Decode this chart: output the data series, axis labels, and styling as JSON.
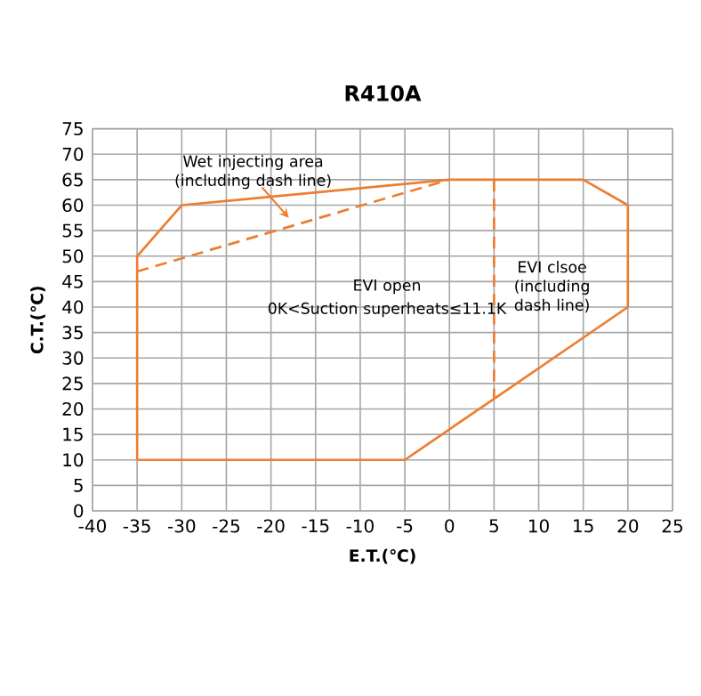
{
  "chart_data": {
    "type": "line",
    "title": "R410A",
    "xlabel": "E.T.(℃)",
    "ylabel": "C.T.(℃)",
    "xlim": [
      -40,
      25
    ],
    "xticks": [
      -40,
      -35,
      -30,
      -25,
      -20,
      -15,
      -10,
      -5,
      0,
      5,
      10,
      15,
      20,
      25
    ],
    "ylim": [
      0,
      75
    ],
    "yticks": [
      0,
      5,
      10,
      15,
      20,
      25,
      30,
      35,
      40,
      45,
      50,
      55,
      60,
      65,
      70,
      75
    ],
    "grid": true,
    "marker": "none",
    "series": [
      {
        "color": "#ed7d31",
        "line_style": "solid",
        "x": [
          -35,
          -35,
          -30,
          0,
          15,
          20,
          20
        ],
        "values": [
          10,
          50,
          60,
          65,
          65,
          60,
          40
        ]
      },
      {
        "color": "#ed7d31",
        "line_style": "solid",
        "x": [
          -35,
          -5,
          5,
          20
        ],
        "values": [
          10,
          10,
          22,
          40
        ]
      },
      {
        "color": "#ed7d31",
        "line_style": "dashed",
        "x": [
          -35,
          0
        ],
        "values": [
          47,
          65
        ]
      },
      {
        "color": "#ed7d31",
        "line_style": "dashed",
        "x": [
          5,
          5
        ],
        "values": [
          65,
          22
        ]
      }
    ],
    "annotations": [
      "Wet injecting area (including dash line)",
      "EVI open",
      "0K<Suction superheats≤11.1K",
      "EVI clsoe (including dash line)"
    ]
  }
}
